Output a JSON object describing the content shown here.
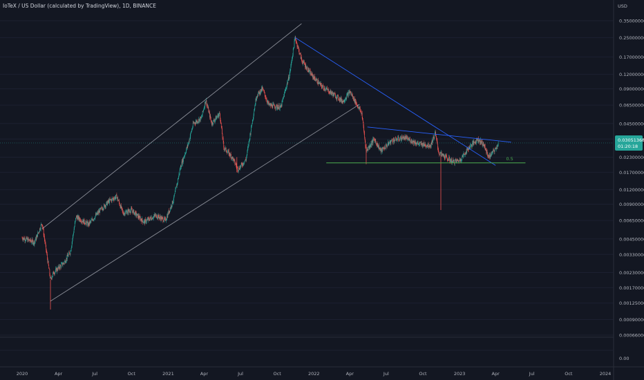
{
  "header": {
    "title": "IoTeX / US Dollar (calculated by TradingView), 1D, BINANCE"
  },
  "price_axis": {
    "unit": "USD",
    "labels": [
      "0.35000000",
      "0.25000000",
      "0.17000000",
      "0.12000000",
      "0.09000000",
      "0.06500000",
      "0.04500000",
      "0.03300000",
      "0.02300000",
      "0.01700000",
      "0.01200000",
      "0.00900000",
      "0.00650000",
      "0.00450000",
      "0.00330000",
      "0.00230000",
      "0.00170000",
      "0.00125000",
      "0.00090000",
      "0.00066000"
    ]
  },
  "indicator_axis": {
    "label": "0.00"
  },
  "time_axis": {
    "labels": [
      "2020",
      "Apr",
      "Jul",
      "Oct",
      "2021",
      "Apr",
      "Jul",
      "Oct",
      "2022",
      "Apr",
      "Jul",
      "Oct",
      "2023",
      "Apr",
      "Jul",
      "Oct",
      "2024"
    ]
  },
  "current_price": {
    "value": "0.03051368",
    "countdown": "01:20:18",
    "color": "#26a69a"
  },
  "fib_label": "0.5",
  "colors": {
    "background": "#131722",
    "candle_up": "#26a69a",
    "candle_down": "#ef5350",
    "channel_lines": "#b2b5be",
    "trendline_blue": "#2962ff",
    "support_green": "#4caf50"
  },
  "chart_data": {
    "type": "candlestick",
    "title": "IoTeX / US Dollar (calculated by TradingView), 1D, BINANCE",
    "y_scale": "log",
    "ylim": [
      0.00066,
      0.35
    ],
    "x_range": [
      "2020-01-01",
      "2024-01-01"
    ],
    "close_path": [
      [
        "2020-01-01",
        0.0046
      ],
      [
        "2020-02-01",
        0.0042
      ],
      [
        "2020-02-20",
        0.0062
      ],
      [
        "2020-03-12",
        0.002
      ],
      [
        "2020-03-20",
        0.0023
      ],
      [
        "2020-04-15",
        0.0028
      ],
      [
        "2020-05-01",
        0.0035
      ],
      [
        "2020-05-15",
        0.007
      ],
      [
        "2020-06-15",
        0.006
      ],
      [
        "2020-07-15",
        0.008
      ],
      [
        "2020-08-05",
        0.0095
      ],
      [
        "2020-08-25",
        0.0105
      ],
      [
        "2020-09-10",
        0.0075
      ],
      [
        "2020-10-01",
        0.008
      ],
      [
        "2020-11-01",
        0.0063
      ],
      [
        "2020-12-01",
        0.0072
      ],
      [
        "2020-12-25",
        0.0065
      ],
      [
        "2021-01-15",
        0.01
      ],
      [
        "2021-02-01",
        0.019
      ],
      [
        "2021-02-20",
        0.03
      ],
      [
        "2021-03-05",
        0.045
      ],
      [
        "2021-03-25",
        0.05
      ],
      [
        "2021-04-05",
        0.072
      ],
      [
        "2021-04-20",
        0.045
      ],
      [
        "2021-05-10",
        0.055
      ],
      [
        "2021-05-20",
        0.028
      ],
      [
        "2021-06-10",
        0.023
      ],
      [
        "2021-06-25",
        0.018
      ],
      [
        "2021-07-15",
        0.022
      ],
      [
        "2021-08-10",
        0.078
      ],
      [
        "2021-08-25",
        0.09
      ],
      [
        "2021-09-10",
        0.065
      ],
      [
        "2021-10-10",
        0.062
      ],
      [
        "2021-11-01",
        0.12
      ],
      [
        "2021-11-15",
        0.25
      ],
      [
        "2021-12-01",
        0.16
      ],
      [
        "2021-12-25",
        0.12
      ],
      [
        "2022-01-20",
        0.095
      ],
      [
        "2022-02-20",
        0.08
      ],
      [
        "2022-03-15",
        0.07
      ],
      [
        "2022-04-01",
        0.085
      ],
      [
        "2022-05-01",
        0.055
      ],
      [
        "2022-05-12",
        0.026
      ],
      [
        "2022-06-01",
        0.033
      ],
      [
        "2022-06-18",
        0.026
      ],
      [
        "2022-07-15",
        0.032
      ],
      [
        "2022-08-15",
        0.034
      ],
      [
        "2022-09-20",
        0.03
      ],
      [
        "2022-10-20",
        0.029
      ],
      [
        "2022-11-01",
        0.037
      ],
      [
        "2022-11-10",
        0.025
      ],
      [
        "2022-12-15",
        0.021
      ],
      [
        "2023-01-01",
        0.0215
      ],
      [
        "2023-01-25",
        0.028
      ],
      [
        "2023-02-15",
        0.033
      ],
      [
        "2023-03-01",
        0.03
      ],
      [
        "2023-03-15",
        0.023
      ],
      [
        "2023-04-01",
        0.027
      ],
      [
        "2023-04-08",
        0.0305
      ]
    ],
    "drawings": [
      {
        "type": "channel-upper",
        "from": [
          "2020-02-20",
          0.0055
        ],
        "to": [
          "2021-12-01",
          0.33
        ]
      },
      {
        "type": "channel-lower",
        "from": [
          "2020-03-12",
          0.0013
        ],
        "to": [
          "2022-04-25",
          0.066
        ]
      },
      {
        "type": "trendline",
        "from": [
          "2021-11-15",
          0.25
        ],
        "to": [
          "2023-04-01",
          0.0195
        ]
      },
      {
        "type": "trendline",
        "from": [
          "2022-05-15",
          0.042
        ],
        "to": [
          "2023-05-10",
          0.031
        ]
      },
      {
        "type": "horizontal-support",
        "value": 0.0205,
        "from": "2022-02-01",
        "to": "2023-06-15",
        "label": "0.5"
      }
    ]
  }
}
